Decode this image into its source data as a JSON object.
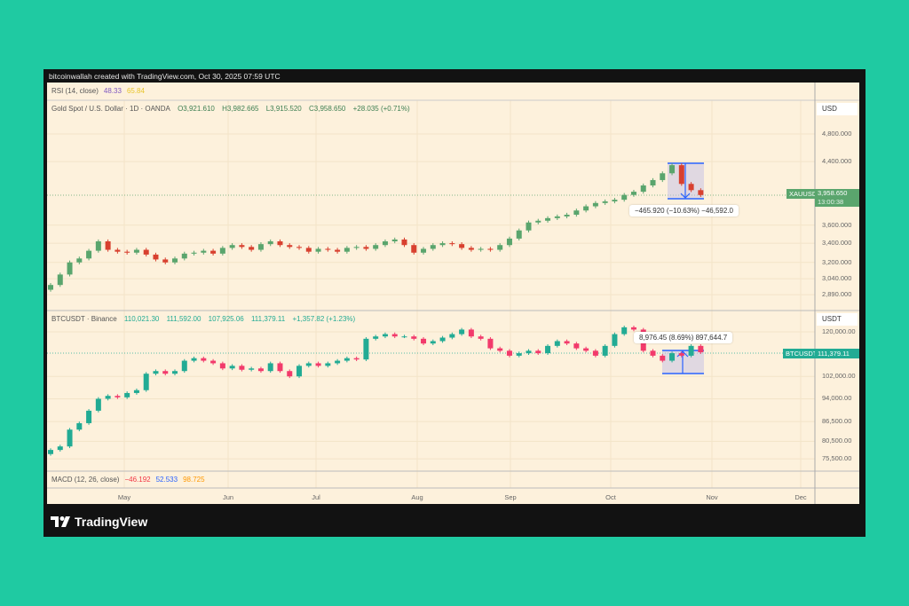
{
  "credit": "bitcoinwallah created with TradingView.com, Oct 30, 2025 07:59 UTC",
  "rsi": {
    "label": "RSI (14, close)",
    "v1": "48.33",
    "v2": "65.84",
    "c1": "#7e57c2",
    "c2": "#f5d33b"
  },
  "gold": {
    "title": "Gold Spot / U.S. Dollar · 1D · OANDA",
    "o": "O3,921.610",
    "h": "H3,982.665",
    "l": "L3,915.520",
    "c": "C3,958.650",
    "chg": "+28.035 (+0.71%)",
    "unit": "USD",
    "symbol_tag": "XAUUSD",
    "price_tag": "3,958.650",
    "countdown": "13:00:38",
    "measure": "−465.920 (−10.63%) −46,592.0",
    "ticks": [
      "4,800.000",
      "4,400.000",
      "3,600.000",
      "3,400.000",
      "3,200.000",
      "3,040.000",
      "2,890.000"
    ]
  },
  "btc": {
    "title": "BTCUSDT · Binance",
    "o": "110,021.30",
    "h": "111,592.00",
    "l": "107,925.06",
    "c": "111,379.11",
    "chg": "+1,357.82 (+1.23%)",
    "unit": "USDT",
    "symbol_tag": "BTCUSDT",
    "price_tag": "111,379.11",
    "measure": "8,976.45 (8.69%) 897,644.7",
    "ticks": [
      "120,000.00",
      "102,000.00",
      "94,000.00",
      "86,500.00",
      "80,500.00",
      "75,500.00"
    ]
  },
  "macd": {
    "label": "MACD (12, 26, close)",
    "v1": "−46.192",
    "v2": "52.533",
    "v3": "98.725",
    "c1": "#f23645",
    "c2": "#2962ff",
    "c3": "#ff9800"
  },
  "time_axis": [
    "May",
    "Jun",
    "Jul",
    "Aug",
    "Sep",
    "Oct",
    "Nov",
    "Dec"
  ],
  "logo": "TradingView",
  "colors": {
    "background": "#1fcaa2",
    "panel": "#fdf1dc",
    "gold_up": "#5aa56d",
    "gold_down": "#d8402f",
    "btc_up": "#22ab94",
    "btc_down": "#f23a6b",
    "measure": "#2962ff"
  },
  "chart_data": [
    {
      "type": "candlestick",
      "title": "Gold Spot / U.S. Dollar · 1D · OANDA",
      "scale": "log",
      "ylim": [
        2850,
        5000
      ],
      "start": "2025-04-08",
      "interval_days": 3,
      "close": [
        2980,
        3080,
        3200,
        3240,
        3320,
        3420,
        3330,
        3310,
        3300,
        3330,
        3280,
        3230,
        3200,
        3240,
        3290,
        3300,
        3320,
        3290,
        3350,
        3380,
        3360,
        3330,
        3390,
        3420,
        3380,
        3360,
        3350,
        3310,
        3340,
        3330,
        3310,
        3350,
        3360,
        3340,
        3380,
        3420,
        3440,
        3380,
        3300,
        3340,
        3380,
        3400,
        3390,
        3350,
        3330,
        3340,
        3330,
        3380,
        3450,
        3540,
        3630,
        3650,
        3680,
        3700,
        3720,
        3770,
        3820,
        3860,
        3880,
        3900,
        3960,
        4000,
        4080,
        4150,
        4240,
        4350,
        4100,
        4020,
        3958.65
      ]
    },
    {
      "type": "candlestick",
      "title": "BTCUSDT · Binance",
      "scale": "log",
      "ylim": [
        73000,
        126000
      ],
      "start": "2025-04-08",
      "interval_days": 3,
      "close": [
        78000,
        79000,
        84000,
        86000,
        90000,
        94000,
        95000,
        94500,
        96000,
        97000,
        103000,
        104000,
        103000,
        104000,
        108000,
        109000,
        108000,
        107000,
        105000,
        106000,
        104500,
        105000,
        104000,
        107000,
        104000,
        102000,
        106000,
        107000,
        106000,
        107000,
        108000,
        109000,
        108500,
        117000,
        118000,
        119000,
        118000,
        118000,
        117000,
        115000,
        116000,
        117500,
        119000,
        121000,
        118000,
        117000,
        113000,
        112000,
        110000,
        111000,
        112000,
        111000,
        114000,
        116000,
        115000,
        113000,
        112000,
        110000,
        114000,
        119000,
        122000,
        121000,
        112000,
        110000,
        108000,
        111000,
        110000,
        114000,
        111379.11
      ]
    }
  ]
}
